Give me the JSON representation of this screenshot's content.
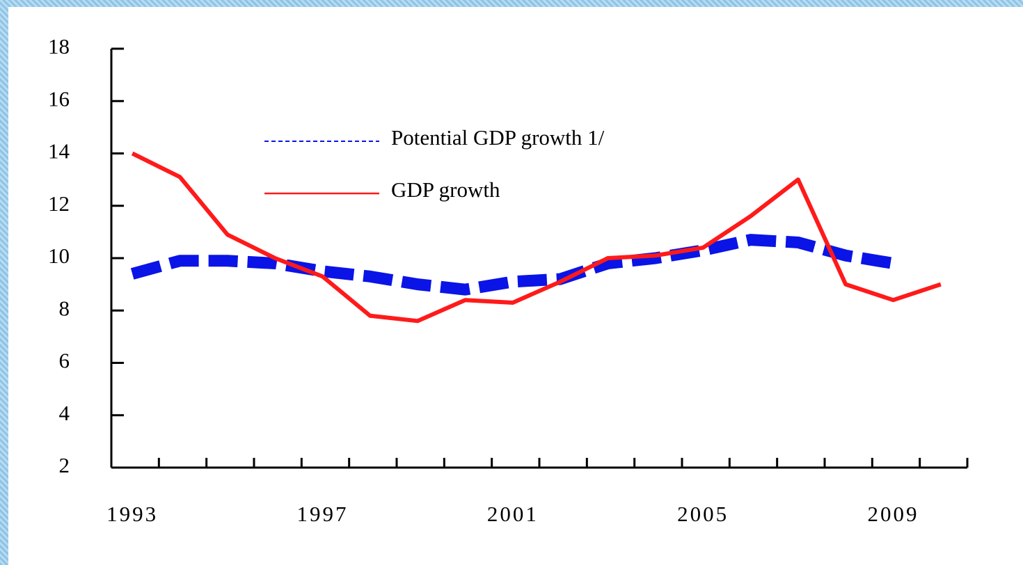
{
  "chart_data": {
    "type": "line",
    "categories": [
      "1993",
      null,
      null,
      null,
      "1997",
      null,
      null,
      null,
      "2001",
      null,
      null,
      null,
      "2005",
      null,
      null,
      null,
      "2009",
      null
    ],
    "series": [
      {
        "name": "Potential GDP growth 1/",
        "color": "#0a14e6",
        "style": "dashed",
        "values": [
          9.4,
          9.9,
          9.9,
          9.8,
          9.5,
          9.3,
          9.0,
          8.8,
          9.1,
          9.2,
          9.8,
          10.0,
          10.3,
          10.7,
          10.6,
          10.1,
          9.8,
          null
        ]
      },
      {
        "name": "GDP growth",
        "color": "#ff1a1a",
        "style": "solid",
        "values": [
          14.0,
          13.1,
          10.9,
          10.0,
          9.3,
          7.8,
          7.6,
          8.4,
          8.3,
          9.1,
          10.0,
          10.1,
          10.4,
          11.6,
          13.0,
          9.0,
          8.4,
          9.0
        ]
      }
    ],
    "ylim": [
      2,
      18
    ],
    "yticks": [
      2,
      4,
      6,
      8,
      10,
      12,
      14,
      16,
      18
    ],
    "grid": false
  }
}
